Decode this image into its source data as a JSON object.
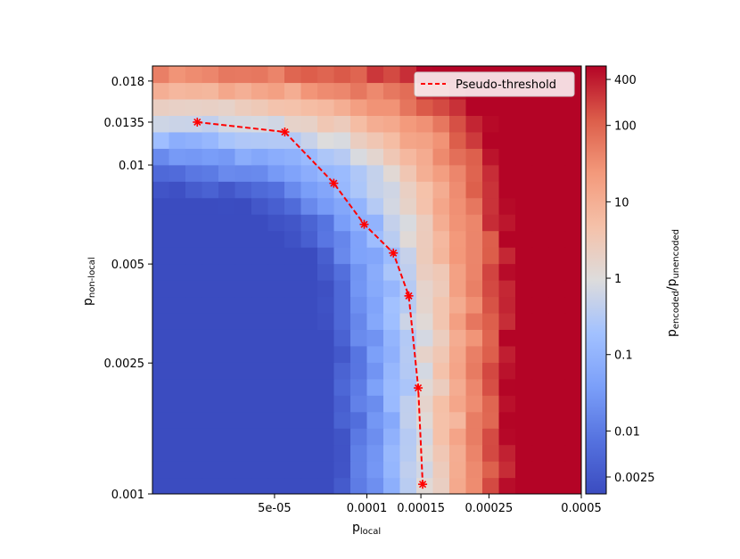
{
  "chart_data": {
    "type": "heatmap",
    "xlabel": "p",
    "xlabel_sub": "local",
    "ylabel": "p",
    "ylabel_sub": "non-local",
    "x_scale": "log",
    "y_scale": "log",
    "xlim": [
      2e-05,
      0.0005
    ],
    "ylim": [
      0.001,
      0.02
    ],
    "x_ticks": [
      {
        "value": 5e-05,
        "label": "5e-05"
      },
      {
        "value": 0.0001,
        "label": "0.0001"
      },
      {
        "value": 0.00015,
        "label": "0.00015"
      },
      {
        "value": 0.00025,
        "label": "0.00025"
      },
      {
        "value": 0.0005,
        "label": "0.0005"
      }
    ],
    "y_ticks": [
      {
        "value": 0.001,
        "label": "0.001"
      },
      {
        "value": 0.0025,
        "label": "0.0025"
      },
      {
        "value": 0.005,
        "label": "0.005"
      },
      {
        "value": 0.01,
        "label": "0.01"
      },
      {
        "value": 0.0135,
        "label": "0.0135"
      },
      {
        "value": 0.018,
        "label": "0.018"
      }
    ],
    "colorbar": {
      "label": "p",
      "label_num_sub": "encoded",
      "label_sep": "/",
      "label_den": "p",
      "label_den_sub": "unencoded",
      "scale": "log",
      "range": [
        0.0015,
        600
      ],
      "colormap": "coolwarm",
      "ticks": [
        {
          "value": 400,
          "label": "400"
        },
        {
          "value": 100,
          "label": "100"
        },
        {
          "value": 10,
          "label": "10"
        },
        {
          "value": 1,
          "label": "1"
        },
        {
          "value": 0.1,
          "label": "0.1"
        },
        {
          "value": 0.01,
          "label": "0.01"
        },
        {
          "value": 0.0025,
          "label": "0.0025"
        }
      ]
    },
    "series": [
      {
        "name": "Pseudo-threshold",
        "style": "dashed",
        "marker": "x-star",
        "color": "#ff0000",
        "x": [
          2.8e-05,
          5.4e-05,
          7.8e-05,
          9.8e-05,
          0.000122,
          0.000137,
          0.000147,
          0.000152
        ],
        "y": [
          0.0135,
          0.0126,
          0.0088,
          0.0066,
          0.0054,
          0.004,
          0.0021,
          0.00107
        ]
      }
    ],
    "legend_position": "top-right",
    "colors": {
      "low": "#3b4cc0",
      "mid": "#dddddd",
      "high": "#b40426",
      "threshold_line": "#ff0000"
    }
  }
}
